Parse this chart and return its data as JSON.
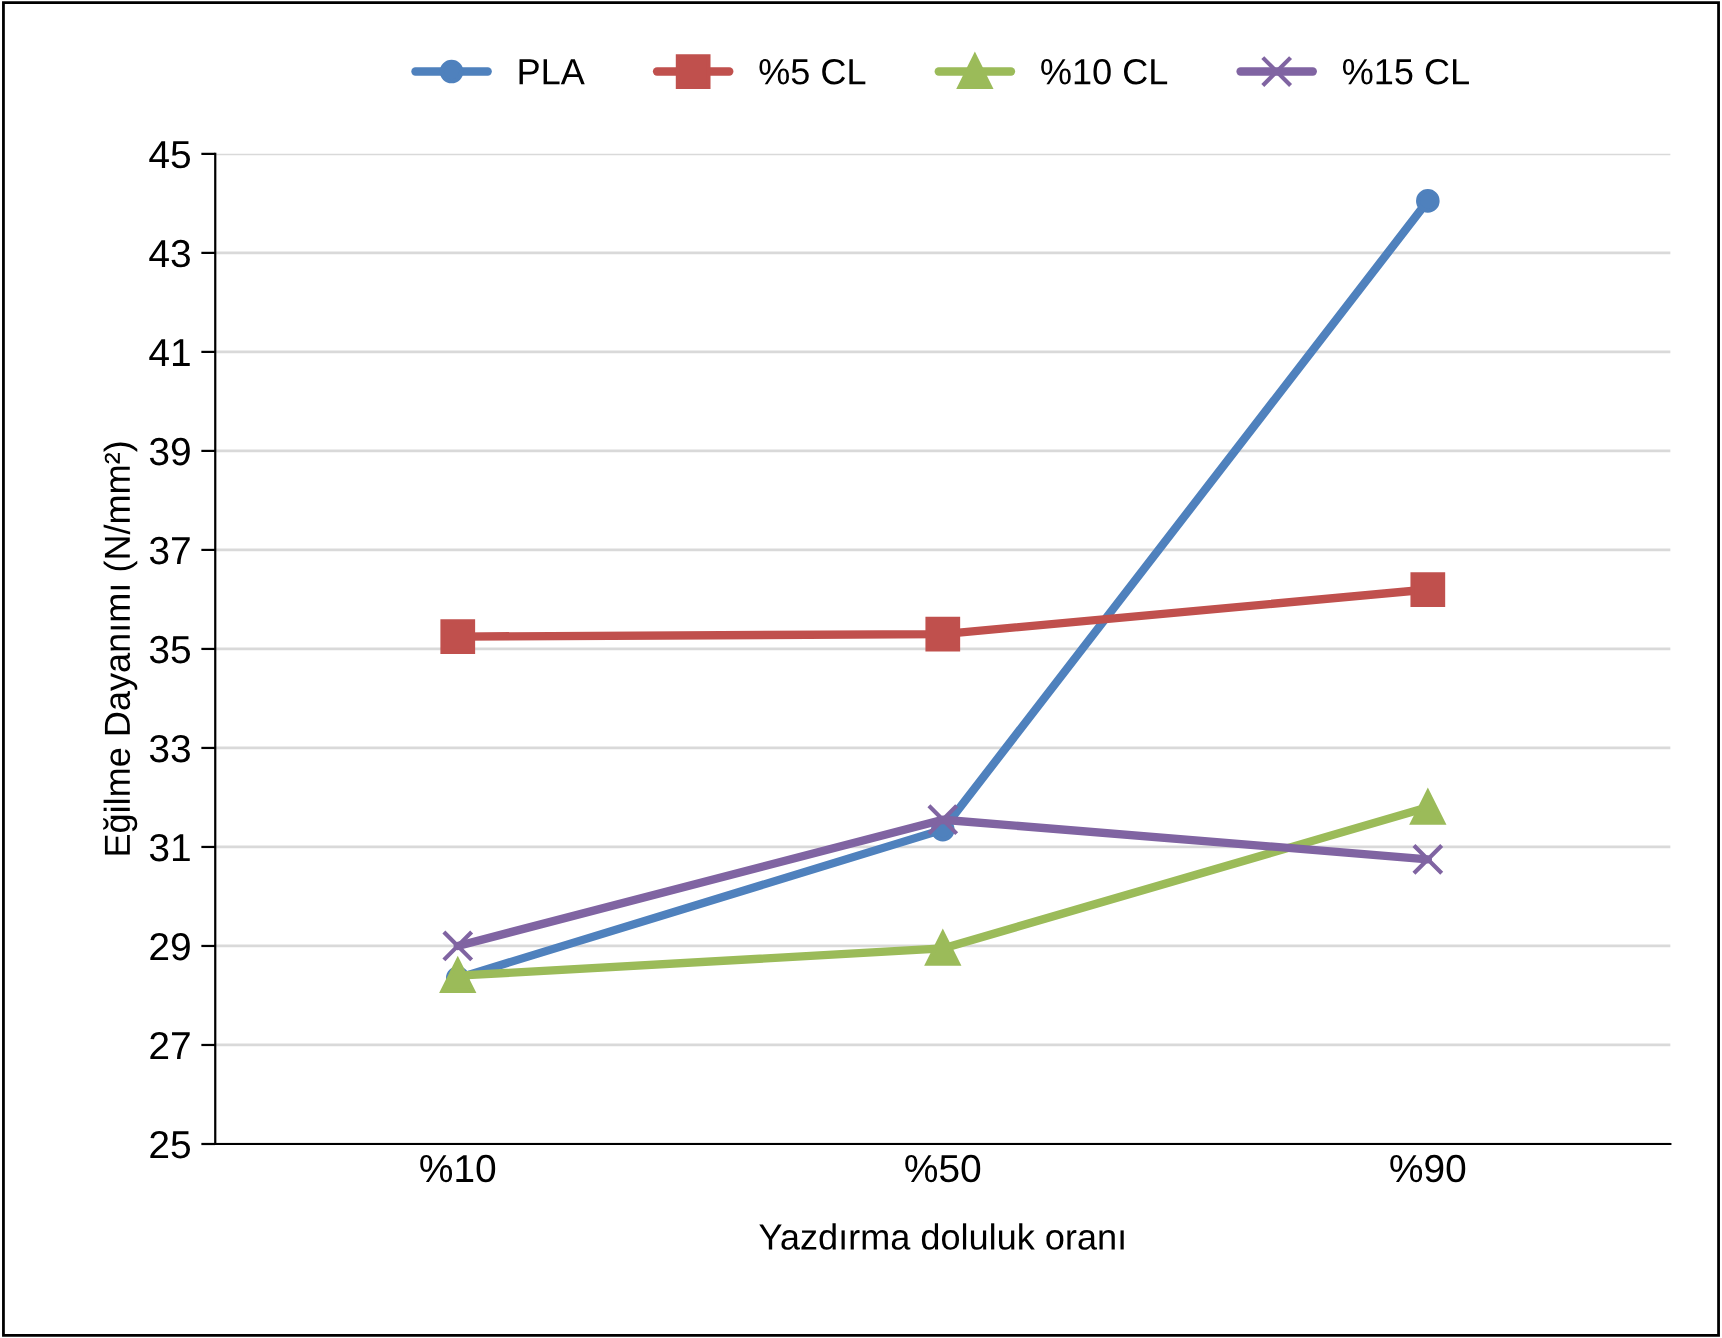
{
  "chart_data": {
    "type": "line",
    "xlabel": "Yazdırma doluluk oranı",
    "ylabel": "Eğilme Dayanımı (N/mm²)",
    "categories": [
      "%10",
      "%50",
      "%90"
    ],
    "series": [
      {
        "name": "PLA",
        "color": "#4f81bd",
        "marker": "circle",
        "values": [
          28.35,
          31.35,
          44.05
        ]
      },
      {
        "name": "%5 CL",
        "color": "#c0504d",
        "marker": "square",
        "values": [
          35.25,
          35.3,
          36.2
        ]
      },
      {
        "name": "%10 CL",
        "color": "#9bbb59",
        "marker": "triangle",
        "values": [
          28.4,
          28.95,
          31.8
        ]
      },
      {
        "name": "%15 CL",
        "color": "#8064a2",
        "marker": "cross",
        "values": [
          29.0,
          31.55,
          30.75
        ]
      }
    ],
    "ylim": [
      25,
      45
    ],
    "yticks": [
      25,
      27,
      29,
      31,
      33,
      35,
      37,
      39,
      41,
      43,
      45
    ],
    "grid": "y",
    "legend": "top",
    "line_style": "solid"
  }
}
